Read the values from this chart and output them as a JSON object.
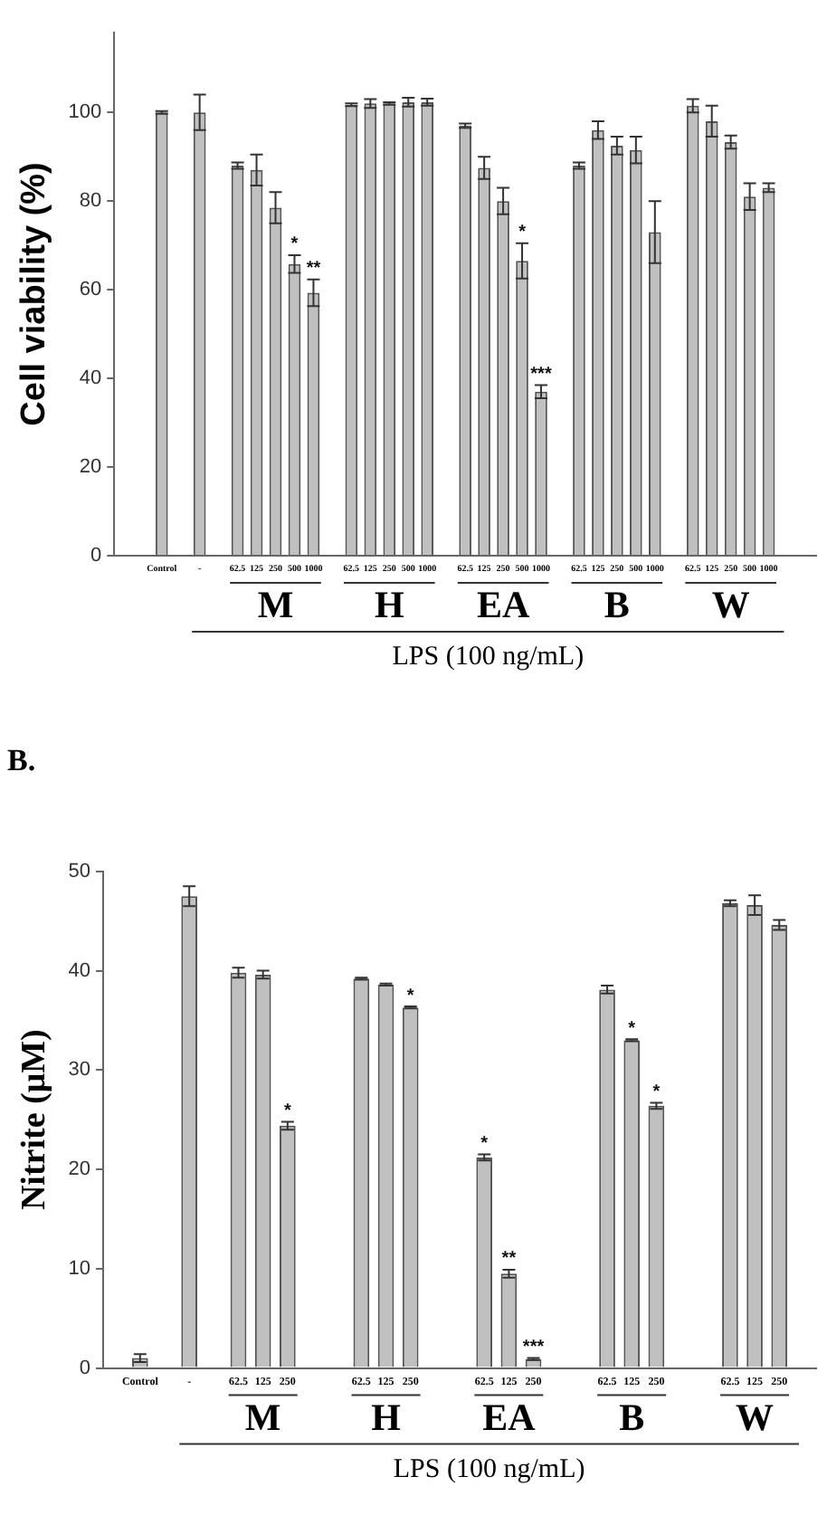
{
  "chart_data": [
    {
      "type": "bar",
      "ylabel": "Cell viability (%)",
      "xlabel": "LPS (100 ng/mL)",
      "color": "#c0c0c0",
      "categories": [
        null,
        null,
        "Control",
        null,
        "-",
        null,
        "62.5",
        "125",
        "250",
        "500",
        "1000",
        null,
        "62.5",
        "125",
        "250",
        "500",
        "1000",
        null,
        "62.5",
        "125",
        "250",
        "500",
        "1000",
        null,
        "62.5",
        "125",
        "250",
        "500",
        "1000",
        null,
        "62.5",
        "125",
        "250",
        "500",
        "1000",
        null,
        null
      ],
      "values": [
        null,
        null,
        100,
        null,
        100,
        null,
        88,
        87,
        78.5,
        65.8,
        59.3,
        null,
        101.7,
        102,
        102,
        102.3,
        102.3,
        null,
        97,
        87.5,
        80,
        66.5,
        37,
        null,
        88,
        96,
        92.5,
        91.5,
        73,
        null,
        101.5,
        98,
        93.3,
        81,
        83,
        null,
        null
      ],
      "errors": [
        null,
        null,
        0.3,
        null,
        4,
        null,
        0.7,
        3.5,
        3.5,
        2,
        3,
        null,
        0.3,
        1,
        0.3,
        1,
        0.8,
        null,
        0.5,
        2.5,
        3,
        4,
        1.5,
        null,
        0.7,
        2,
        2,
        3,
        7,
        null,
        1.5,
        3.5,
        1.5,
        3,
        1,
        null,
        null
      ],
      "value_labels": [
        null,
        null,
        null,
        null,
        null,
        null,
        null,
        null,
        null,
        "*",
        "**",
        null,
        null,
        null,
        null,
        null,
        null,
        null,
        null,
        null,
        null,
        "*",
        "***",
        null,
        null,
        null,
        null,
        null,
        null,
        null,
        null,
        null,
        null,
        null,
        null,
        null,
        null
      ],
      "annotations": [
        "M",
        "H",
        "EA",
        "B",
        "W"
      ],
      "ylim": [
        0,
        118
      ],
      "yticks": [
        0,
        20,
        40,
        60,
        80,
        100
      ]
    },
    {
      "type": "bar",
      "title": "B.",
      "ylabel": "Nitrite (μM)",
      "xlabel": "LPS (100 ng/mL)",
      "color": "#c0c0c0",
      "categories": [
        null,
        "Control",
        null,
        "-",
        null,
        "62.5",
        "125",
        "250",
        null,
        null,
        "62.5",
        "125",
        "250",
        null,
        null,
        "62.5",
        "125",
        "250",
        null,
        null,
        "62.5",
        "125",
        "250",
        null,
        null,
        "62.5",
        "125",
        "250",
        null
      ],
      "values": [
        null,
        1,
        null,
        47.5,
        null,
        39.8,
        39.6,
        24.4,
        null,
        null,
        39.2,
        38.6,
        36.3,
        null,
        null,
        21.2,
        9.5,
        0.9,
        null,
        null,
        38.1,
        33,
        26.4,
        null,
        null,
        46.8,
        46.6,
        44.6,
        null
      ],
      "errors": [
        null,
        0.4,
        null,
        1,
        null,
        0.5,
        0.4,
        0.4,
        null,
        null,
        0.1,
        0.1,
        0.1,
        null,
        null,
        0.3,
        0.4,
        0.1,
        null,
        null,
        0.4,
        0.1,
        0.3,
        null,
        null,
        0.3,
        1,
        0.5,
        null
      ],
      "value_labels": [
        null,
        null,
        null,
        null,
        null,
        null,
        null,
        "*",
        null,
        null,
        null,
        null,
        "*",
        null,
        null,
        "*",
        "**",
        "***",
        null,
        null,
        null,
        "*",
        "*",
        null,
        null,
        null,
        null,
        null,
        null
      ],
      "annotations": [
        "M",
        "H",
        "EA",
        "B",
        "W"
      ],
      "ylim": [
        0,
        50
      ],
      "yticks": [
        0,
        10,
        20,
        30,
        40,
        50
      ]
    }
  ]
}
